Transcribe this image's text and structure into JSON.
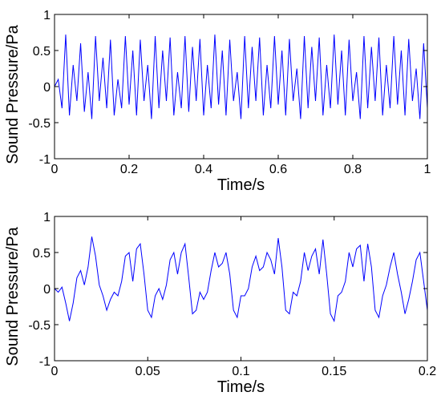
{
  "chart_data": [
    {
      "type": "line",
      "color": "#0000ff",
      "xlabel": "Time/s",
      "ylabel": "Sound Pressure/Pa",
      "xlim": [
        0,
        1
      ],
      "xticks": [
        0,
        0.2,
        0.4,
        0.6,
        0.8,
        1
      ],
      "ylim": [
        -1,
        1
      ],
      "yticks": [
        -1,
        -0.5,
        0,
        0.5,
        1
      ],
      "x": [
        0,
        0.01,
        0.02,
        0.03,
        0.04,
        0.05,
        0.06,
        0.07,
        0.08,
        0.09,
        0.1,
        0.11,
        0.12,
        0.13,
        0.14,
        0.15,
        0.16,
        0.17,
        0.18,
        0.19,
        0.2,
        0.21,
        0.22,
        0.23,
        0.24,
        0.25,
        0.26,
        0.27,
        0.28,
        0.29,
        0.3,
        0.31,
        0.32,
        0.33,
        0.34,
        0.35,
        0.36,
        0.37,
        0.38,
        0.39,
        0.4,
        0.41,
        0.42,
        0.43,
        0.44,
        0.45,
        0.46,
        0.47,
        0.48,
        0.49,
        0.5,
        0.51,
        0.52,
        0.53,
        0.54,
        0.55,
        0.56,
        0.57,
        0.58,
        0.59,
        0.6,
        0.61,
        0.62,
        0.63,
        0.64,
        0.65,
        0.66,
        0.67,
        0.68,
        0.69,
        0.7,
        0.71,
        0.72,
        0.73,
        0.74,
        0.75,
        0.76,
        0.77,
        0.78,
        0.79,
        0.8,
        0.81,
        0.82,
        0.83,
        0.84,
        0.85,
        0.86,
        0.87,
        0.88,
        0.89,
        0.9,
        0.91,
        0.92,
        0.93,
        0.94,
        0.95,
        0.96,
        0.97,
        0.98,
        0.99,
        1
      ],
      "values": [
        0,
        0.1,
        -0.3,
        0.72,
        -0.4,
        0.3,
        -0.2,
        0.6,
        -0.35,
        0.2,
        -0.45,
        0.7,
        -0.2,
        0.4,
        -0.3,
        0.65,
        -0.4,
        0.1,
        -0.3,
        0.7,
        -0.25,
        0.5,
        -0.4,
        0.65,
        -0.2,
        0.3,
        -0.45,
        0.7,
        -0.3,
        0.5,
        -0.2,
        0.68,
        -0.4,
        0.2,
        -0.3,
        0.7,
        -0.35,
        0.55,
        -0.2,
        0.66,
        -0.4,
        0.3,
        -0.3,
        0.72,
        -0.25,
        0.5,
        -0.4,
        0.65,
        -0.2,
        0.2,
        -0.45,
        0.7,
        -0.3,
        0.55,
        -0.2,
        0.68,
        -0.4,
        0.3,
        -0.3,
        0.7,
        -0.25,
        0.5,
        -0.4,
        0.66,
        -0.2,
        0.25,
        -0.45,
        0.7,
        -0.3,
        0.55,
        -0.2,
        0.68,
        -0.4,
        0.3,
        -0.3,
        0.72,
        -0.25,
        0.5,
        -0.4,
        0.65,
        -0.2,
        0.2,
        -0.45,
        0.7,
        -0.3,
        0.55,
        -0.2,
        0.68,
        -0.4,
        0.3,
        -0.3,
        0.7,
        -0.25,
        0.5,
        -0.4,
        0.66,
        -0.2,
        0.25,
        -0.45,
        0.6,
        -0.3
      ]
    },
    {
      "type": "line",
      "color": "#0000ff",
      "xlabel": "Time/s",
      "ylabel": "Sound Pressure/Pa",
      "xlim": [
        0,
        0.2
      ],
      "xticks": [
        0,
        0.05,
        0.1,
        0.15,
        0.2
      ],
      "ylim": [
        -1,
        1
      ],
      "yticks": [
        -1,
        -0.5,
        0,
        0.5,
        1
      ],
      "x": [
        0,
        0.002,
        0.004,
        0.006,
        0.008,
        0.01,
        0.012,
        0.014,
        0.016,
        0.018,
        0.02,
        0.022,
        0.024,
        0.026,
        0.028,
        0.03,
        0.032,
        0.034,
        0.036,
        0.038,
        0.04,
        0.042,
        0.044,
        0.046,
        0.048,
        0.05,
        0.052,
        0.054,
        0.056,
        0.058,
        0.06,
        0.062,
        0.064,
        0.066,
        0.068,
        0.07,
        0.072,
        0.074,
        0.076,
        0.078,
        0.08,
        0.082,
        0.084,
        0.086,
        0.088,
        0.09,
        0.092,
        0.094,
        0.096,
        0.098,
        0.1,
        0.102,
        0.104,
        0.106,
        0.108,
        0.11,
        0.112,
        0.114,
        0.116,
        0.118,
        0.12,
        0.122,
        0.124,
        0.126,
        0.128,
        0.13,
        0.132,
        0.134,
        0.136,
        0.138,
        0.14,
        0.142,
        0.144,
        0.146,
        0.148,
        0.15,
        0.152,
        0.154,
        0.156,
        0.158,
        0.16,
        0.162,
        0.164,
        0.166,
        0.168,
        0.17,
        0.172,
        0.174,
        0.176,
        0.178,
        0.18,
        0.182,
        0.184,
        0.186,
        0.188,
        0.19,
        0.192,
        0.194,
        0.196,
        0.198,
        0.2
      ],
      "values": [
        0,
        -0.05,
        0.02,
        -0.2,
        -0.45,
        -0.2,
        0.15,
        0.25,
        0.05,
        0.3,
        0.72,
        0.45,
        0.05,
        -0.1,
        -0.3,
        -0.15,
        -0.05,
        -0.1,
        0.1,
        0.45,
        0.5,
        0.1,
        0.55,
        0.62,
        0.2,
        -0.3,
        -0.4,
        -0.1,
        0,
        -0.15,
        0.05,
        0.4,
        0.5,
        0.2,
        0.5,
        0.62,
        0.15,
        -0.35,
        -0.3,
        -0.05,
        -0.15,
        -0.05,
        0.25,
        0.5,
        0.3,
        0.35,
        0.5,
        0.2,
        -0.3,
        -0.4,
        -0.1,
        -0.1,
        0,
        0.3,
        0.45,
        0.25,
        0.3,
        0.5,
        0.4,
        0.2,
        0.7,
        0.3,
        -0.3,
        -0.35,
        -0.05,
        -0.1,
        0.1,
        0.5,
        0.25,
        0.45,
        0.55,
        0.2,
        0.68,
        0.2,
        -0.35,
        -0.45,
        -0.1,
        -0.05,
        0.1,
        0.5,
        0.3,
        0.55,
        0.6,
        0.1,
        0.62,
        0.3,
        -0.3,
        -0.4,
        -0.1,
        0.05,
        0.3,
        0.5,
        0.2,
        -0.05,
        -0.35,
        -0.15,
        0.1,
        0.4,
        0.5,
        0.1,
        -0.3
      ]
    }
  ]
}
